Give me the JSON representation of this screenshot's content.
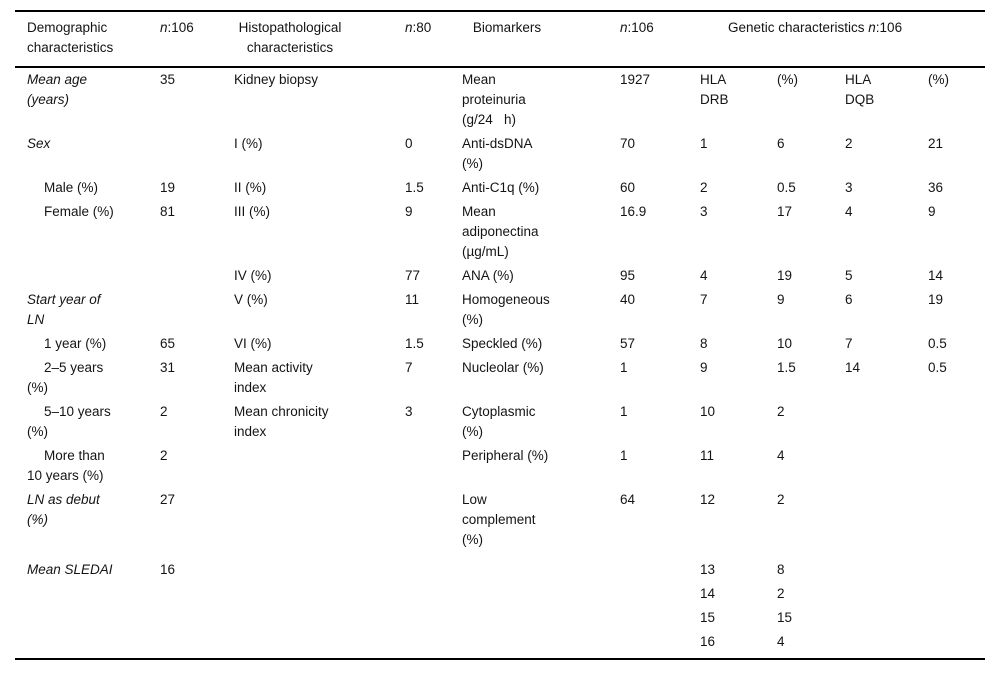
{
  "colors": {
    "background": "#ffffff",
    "text": "#141414",
    "rule": "#000000"
  },
  "table": {
    "header": {
      "demographic": "Demographic characteristics",
      "n_label": "n",
      "demographic_n": ":106",
      "histopathological": "Histopathological characteristics",
      "histopathological_n": ":80",
      "biomarkers": "Biomarkers",
      "biomarkers_n": ":106",
      "genetic_prefix": "Genetic characteristics ",
      "genetic_n": ":106"
    },
    "rows": [
      {
        "kind": "category",
        "c1": "Mean age (years)",
        "c2": "35",
        "c3": "Kidney biopsy",
        "c4": "",
        "c5": "Mean proteinuria (g/24   h)",
        "c6": "1927",
        "c7": "HLA DRB",
        "c8": "(%)",
        "c9": "HLA DQB",
        "c10": "(%)"
      },
      {
        "kind": "category",
        "c1": "Sex",
        "c2": "",
        "c3": "I (%)",
        "c4": "0",
        "c5": "Anti-dsDNA (%)",
        "c6": "70",
        "c7": "1",
        "c8": "6",
        "c9": "2",
        "c10": "21"
      },
      {
        "kind": "subitem",
        "c1": "Male (%)",
        "c2": "19",
        "c3": "II (%)",
        "c4": "1.5",
        "c5": "Anti-C1q (%)",
        "c6": "60",
        "c7": "2",
        "c8": "0.5",
        "c9": "3",
        "c10": "36"
      },
      {
        "kind": "subitem",
        "c1": "Female (%)",
        "c2": "81",
        "c3": "III (%)",
        "c4": "9",
        "c5": "Mean adiponectina (µg/mL)",
        "c6": "16.9",
        "c7": "3",
        "c8": "17",
        "c9": "4",
        "c10": "9"
      },
      {
        "kind": "plain",
        "c1": "",
        "c2": "",
        "c3": "IV (%)",
        "c4": "77",
        "c5": "ANA (%)",
        "c6": "95",
        "c7": "4",
        "c8": "19",
        "c9": "5",
        "c10": "14"
      },
      {
        "kind": "category",
        "c1": "Start year of LN",
        "c2": "",
        "c3": "V (%)",
        "c4": "11",
        "c5": "Homogeneous (%)",
        "c6": "40",
        "c7": "7",
        "c8": "9",
        "c9": "6",
        "c10": "19"
      },
      {
        "kind": "subitem",
        "c1": "1 year (%)",
        "c2": "65",
        "c3": "VI (%)",
        "c4": "1.5",
        "c5": "Speckled (%)",
        "c6": "57",
        "c7": "8",
        "c8": "10",
        "c9": "7",
        "c10": "0.5"
      },
      {
        "kind": "subitem",
        "c1": "2–5 years (%)",
        "c2": "31",
        "c3": "Mean activity index",
        "c4": "7",
        "c5": "Nucleolar (%)",
        "c6": "1",
        "c7": "9",
        "c8": "1.5",
        "c9": "14",
        "c10": "0.5"
      },
      {
        "kind": "subitem",
        "c1": "5–10 years (%)",
        "c2": "2",
        "c3": "Mean chronicity index",
        "c4": "3",
        "c5": "Cytoplasmic (%)",
        "c6": "1",
        "c7": "10",
        "c8": "2",
        "c9": "",
        "c10": ""
      },
      {
        "kind": "subitem",
        "c1": "More than 10 years (%)",
        "c2": "2",
        "c3": "",
        "c4": "",
        "c5": "Peripheral (%)",
        "c6": "1",
        "c7": "11",
        "c8": "4",
        "c9": "",
        "c10": ""
      },
      {
        "kind": "category",
        "c1": "LN as debut (%)",
        "c2": "27",
        "c3": "",
        "c4": "",
        "c5": "Low complement (%)",
        "c6": "64",
        "c7": "12",
        "c8": "2",
        "c9": "",
        "c10": ""
      },
      {
        "kind": "category",
        "gap_top": true,
        "c1": "Mean SLEDAI",
        "c2": "16",
        "c3": "",
        "c4": "",
        "c5": "",
        "c6": "",
        "c7": "13",
        "c8": "8",
        "c9": "",
        "c10": ""
      },
      {
        "kind": "plain",
        "c1": "",
        "c2": "",
        "c3": "",
        "c4": "",
        "c5": "",
        "c6": "",
        "c7": "14",
        "c8": "2",
        "c9": "",
        "c10": ""
      },
      {
        "kind": "plain",
        "c1": "",
        "c2": "",
        "c3": "",
        "c4": "",
        "c5": "",
        "c6": "",
        "c7": "15",
        "c8": "15",
        "c9": "",
        "c10": ""
      },
      {
        "kind": "plain",
        "c1": "",
        "c2": "",
        "c3": "",
        "c4": "",
        "c5": "",
        "c6": "",
        "c7": "16",
        "c8": "4",
        "c9": "",
        "c10": ""
      }
    ]
  }
}
